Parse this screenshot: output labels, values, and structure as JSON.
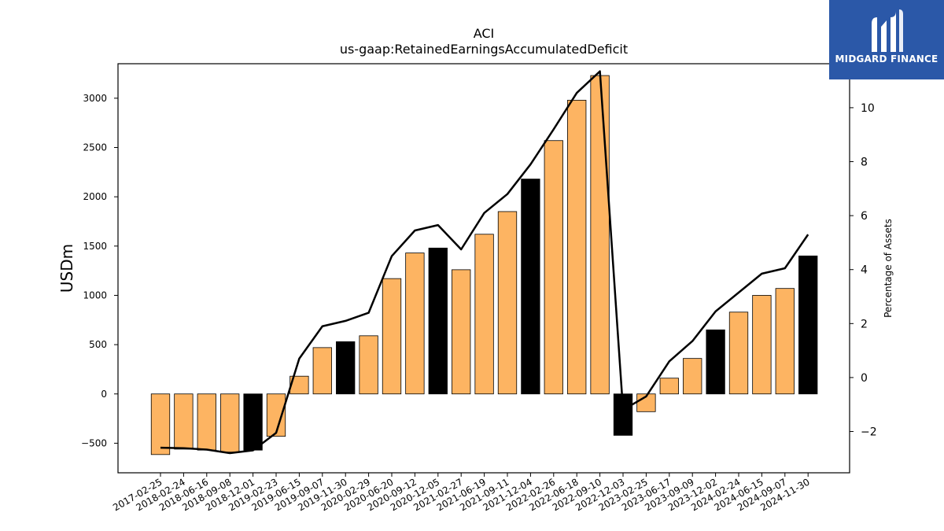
{
  "brand": {
    "name": "MIDGARD FINANCE",
    "logo_icon": "midgard-logo-icon",
    "bg_color": "#2b58a8"
  },
  "chart_data": {
    "type": "bar",
    "title": "ACI",
    "subtitle": "us-gaap:RetainedEarningsAccumulatedDeficit",
    "ylabel": "USDm",
    "y2label": "Percentage of Assets",
    "ylim": [
      -800,
      3350
    ],
    "y2lim": [
      -3.53,
      11.63
    ],
    "yticks": [
      -500,
      0,
      500,
      1000,
      1500,
      2000,
      2500,
      3000
    ],
    "y2ticks": [
      -2,
      0,
      2,
      4,
      6,
      8,
      10
    ],
    "categories": [
      "2017-02-25",
      "2018-02-24",
      "2018-06-16",
      "2018-09-08",
      "2018-12-01",
      "2019-02-23",
      "2019-06-15",
      "2019-09-07",
      "2019-11-30",
      "2020-02-29",
      "2020-06-20",
      "2020-09-12",
      "2020-12-05",
      "2021-02-27",
      "2021-06-19",
      "2021-09-11",
      "2021-12-04",
      "2022-02-26",
      "2022-06-18",
      "2022-09-10",
      "2022-12-03",
      "2023-02-25",
      "2023-06-17",
      "2023-09-09",
      "2023-12-02",
      "2024-02-24",
      "2024-06-15",
      "2024-09-07",
      "2024-11-30"
    ],
    "series": [
      {
        "type": "bar",
        "values": [
          -615,
          -560,
          -570,
          -590,
          -570,
          -430,
          180,
          470,
          530,
          590,
          1170,
          1430,
          1480,
          1260,
          1620,
          1850,
          2180,
          2570,
          2980,
          3230,
          -420,
          -180,
          160,
          360,
          650,
          830,
          1000,
          1070,
          1400
        ],
        "highlight": [
          false,
          false,
          false,
          false,
          true,
          false,
          false,
          false,
          true,
          false,
          false,
          false,
          true,
          false,
          false,
          false,
          true,
          false,
          false,
          false,
          true,
          false,
          false,
          false,
          true,
          false,
          false,
          false,
          true
        ],
        "color": "#fdb462",
        "highlight_color": "#000000"
      },
      {
        "type": "line",
        "axis": "right",
        "values": [
          -2.6,
          -2.62,
          -2.67,
          -2.8,
          -2.7,
          -2.05,
          0.7,
          1.9,
          2.1,
          2.4,
          4.5,
          5.45,
          5.65,
          4.75,
          6.1,
          6.8,
          7.9,
          9.2,
          10.55,
          11.35,
          -1.2,
          -0.7,
          0.6,
          1.35,
          2.45,
          3.15,
          3.85,
          4.05,
          5.3
        ],
        "color": "#000000"
      }
    ],
    "grid": false,
    "legend": "none"
  }
}
